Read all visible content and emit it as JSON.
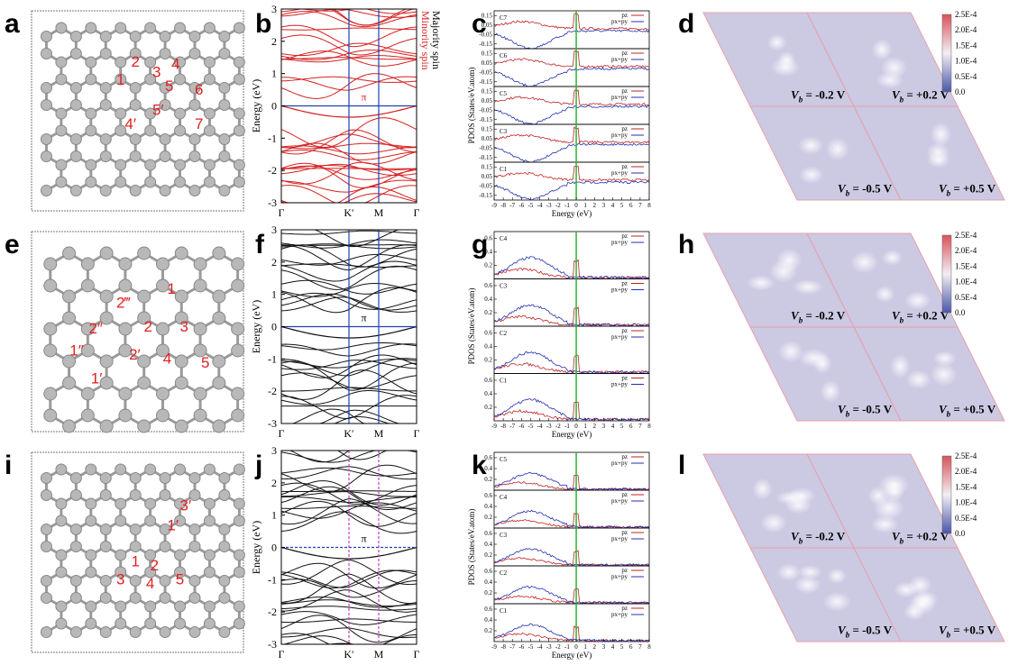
{
  "lattice_panels": [
    {
      "label": "a",
      "atom_labels": [
        "1",
        "2",
        "3",
        "4",
        "5",
        "6",
        "5′",
        "4′",
        "7"
      ]
    },
    {
      "label": "e",
      "atom_labels": [
        "1",
        "2‴",
        "2″",
        "2",
        "3",
        "1″",
        "2′",
        "4",
        "5",
        "1′"
      ]
    },
    {
      "label": "i",
      "atom_labels": [
        "3′",
        "1′",
        "1",
        "2",
        "3",
        "4",
        "5"
      ]
    }
  ],
  "band_panels": [
    {
      "label": "b",
      "y_label": "Energy (eV)",
      "ylim": [
        -3,
        3
      ],
      "yticks": [
        3,
        2,
        1,
        0,
        -1,
        -2,
        -3
      ],
      "xticks": [
        "Γ",
        "K′",
        "M",
        "Γ"
      ],
      "annotation": "π",
      "legend": [
        "Minority spin",
        "Majority spin"
      ],
      "color": "#d42020"
    },
    {
      "label": "f",
      "y_label": "Energy (eV)",
      "ylim": [
        -3,
        3
      ],
      "yticks": [
        3,
        2,
        1,
        0,
        -1,
        -2,
        -3
      ],
      "xticks": [
        "Γ",
        "K′",
        "M",
        "Γ"
      ],
      "annotation": "π",
      "legend": [],
      "color": "#111111"
    },
    {
      "label": "j",
      "y_label": "Energy (eV)",
      "ylim": [
        -3,
        3
      ],
      "yticks": [
        3,
        2,
        1,
        0,
        -1,
        -2,
        -3
      ],
      "xticks": [
        "Γ",
        "K′",
        "M",
        "Γ"
      ],
      "annotation": "π",
      "legend": [],
      "color": "#111111"
    }
  ],
  "pdos_panels": [
    {
      "label": "c",
      "y_label": "PDOS (States/eV.atom)",
      "x_label": "Energy (eV)",
      "xlim": [
        -9,
        8
      ],
      "xticks": [
        -9,
        -8,
        -7,
        -6,
        -5,
        -4,
        -3,
        -2,
        -1,
        0,
        1,
        2,
        3,
        4,
        5,
        6,
        7,
        8
      ],
      "ylim": [
        -0.2,
        0.2
      ],
      "yticks": [
        0.15,
        0.05,
        -0.05,
        -0.15
      ],
      "rows": [
        "C7",
        "C6",
        "C5",
        "C3",
        "C1"
      ],
      "legend": [
        "pz",
        "px+py"
      ]
    },
    {
      "label": "g",
      "y_label": "PDOS (States/eV.atom)",
      "x_label": "Energy (eV)",
      "xlim": [
        -9,
        8
      ],
      "xticks": [
        -9,
        -8,
        -7,
        -6,
        -5,
        -4,
        -3,
        -2,
        -1,
        0,
        1,
        2,
        3,
        4,
        5,
        6,
        7,
        8
      ],
      "ylim": [
        0,
        0.7
      ],
      "yticks": [
        0.6,
        0.4,
        0.2
      ],
      "rows": [
        "C4",
        "C3",
        "C2",
        "C1"
      ],
      "legend": [
        "pz",
        "px+py"
      ]
    },
    {
      "label": "k",
      "y_label": "PDOS (States/eV.atom)",
      "x_label": "Energy (eV)",
      "xlim": [
        -9,
        8
      ],
      "xticks": [
        -9,
        -8,
        -7,
        -6,
        -5,
        -4,
        -3,
        -2,
        -1,
        0,
        1,
        2,
        3,
        4,
        5,
        6,
        7,
        8
      ],
      "ylim": [
        0,
        0.7
      ],
      "yticks": [
        0.6,
        0.4,
        0.2
      ],
      "rows": [
        "C5",
        "C4",
        "C3",
        "C2",
        "C1"
      ],
      "legend": [
        "pz",
        "px+py"
      ]
    }
  ],
  "stm_panels": [
    {
      "label": "d",
      "colorbar": [
        "2.5E-4",
        "2.0E-4",
        "1.5E-4",
        "1.0E-4",
        "0.5E-4",
        "0.0"
      ]
    },
    {
      "label": "h",
      "colorbar": [
        "2.5E-4",
        "2.0E-4",
        "1.5E-4",
        "1.0E-4",
        "0.5E-4",
        "0.0"
      ]
    },
    {
      "label": "l",
      "colorbar": [
        "2.5E-4",
        "2.0E-4",
        "1.5E-4",
        "1.0E-4",
        "0.5E-4",
        "0.0"
      ]
    }
  ],
  "bias_symbol": "V",
  "bias_subscript": "b",
  "biases": [
    " = -0.2 V",
    " = +0.2 V",
    " = -0.5 V",
    " = +0.5 V"
  ]
}
